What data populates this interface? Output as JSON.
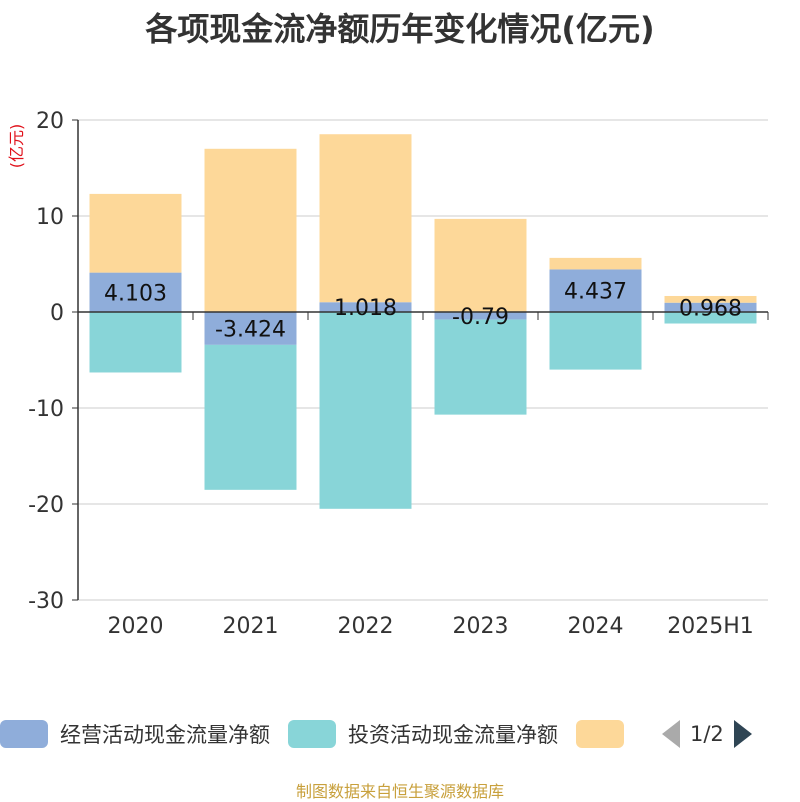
{
  "chart_data": {
    "type": "bar",
    "title": "各项现金流净额历年变化情况(亿元)",
    "ylabel": "(亿元)",
    "categories": [
      "2020",
      "2021",
      "2022",
      "2023",
      "2024",
      "2025H1"
    ],
    "ylim": [
      -30,
      20
    ],
    "yticks": [
      20,
      10,
      0,
      -10,
      -20,
      -30
    ],
    "stacked": true,
    "grid": true,
    "legend_position": "bottom",
    "series": [
      {
        "name": "经营活动现金流量净额",
        "color": "#8fadda",
        "values": [
          4.103,
          -3.424,
          1.018,
          -0.79,
          4.437,
          0.968
        ],
        "labels": [
          "4.103",
          "-3.424",
          "1.018",
          "-0.79",
          "4.437",
          "0.968"
        ]
      },
      {
        "name": "投资活动现金流量净额",
        "color": "#88d5d8",
        "values": [
          -6.3,
          -15.1,
          -20.5,
          -9.9,
          -6.0,
          -1.2
        ]
      },
      {
        "name": "",
        "color": "#fdd899",
        "values": [
          8.2,
          17.0,
          17.5,
          9.7,
          1.2,
          0.7
        ]
      }
    ]
  },
  "legend": {
    "page_indicator": "1/2"
  },
  "footer": "制图数据来自恒生聚源数据库"
}
